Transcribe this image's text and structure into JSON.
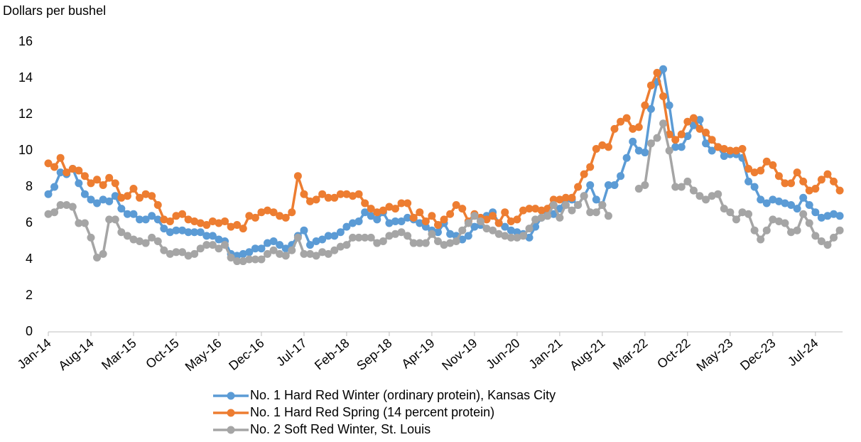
{
  "chart_data": {
    "type": "line",
    "y_axis_label": "Dollars per bushel",
    "categories": [
      "Jan-14",
      null,
      null,
      null,
      null,
      null,
      null,
      "Aug-14",
      null,
      null,
      null,
      null,
      null,
      null,
      "Mar-15",
      null,
      null,
      null,
      null,
      null,
      null,
      "Oct-15",
      null,
      null,
      null,
      null,
      null,
      null,
      "May-16",
      null,
      null,
      null,
      null,
      null,
      null,
      "Dec-16",
      null,
      null,
      null,
      null,
      null,
      null,
      "Jul-17",
      null,
      null,
      null,
      null,
      null,
      null,
      "Feb-18",
      null,
      null,
      null,
      null,
      null,
      null,
      "Sep-18",
      null,
      null,
      null,
      null,
      null,
      null,
      "Apr-19",
      null,
      null,
      null,
      null,
      null,
      null,
      "Nov-19",
      null,
      null,
      null,
      null,
      null,
      null,
      "Jun-20",
      null,
      null,
      null,
      null,
      null,
      null,
      "Jan-21",
      null,
      null,
      null,
      null,
      null,
      null,
      "Aug-21",
      null,
      null,
      null,
      null,
      null,
      null,
      "Mar-22",
      null,
      null,
      null,
      null,
      null,
      null,
      "Oct-22",
      null,
      null,
      null,
      null,
      null,
      null,
      "May-23",
      null,
      null,
      null,
      null,
      null,
      null,
      "Dec-23",
      null,
      null,
      null,
      null,
      null,
      null,
      "Jul-24",
      null,
      null,
      null,
      null
    ],
    "ylim": [
      0,
      16
    ],
    "yticks": [
      0,
      2,
      4,
      6,
      8,
      10,
      12,
      14,
      16
    ],
    "series": [
      {
        "name": "No. 1 Hard Red Winter (ordinary protein), Kansas City",
        "color": "#5b9bd5",
        "values": [
          7.6,
          8.0,
          8.8,
          8.7,
          9.0,
          8.2,
          7.6,
          7.3,
          7.1,
          7.3,
          7.2,
          7.5,
          6.8,
          6.5,
          6.5,
          6.2,
          6.2,
          6.4,
          6.2,
          5.7,
          5.5,
          5.6,
          5.6,
          5.5,
          5.5,
          5.5,
          5.3,
          5.3,
          5.1,
          5.0,
          4.3,
          4.2,
          4.3,
          4.4,
          4.6,
          4.6,
          4.9,
          5.0,
          4.8,
          4.6,
          4.8,
          5.3,
          5.6,
          4.8,
          5.0,
          5.1,
          5.3,
          5.3,
          5.5,
          5.8,
          6.0,
          6.1,
          6.6,
          6.4,
          6.2,
          6.6,
          6.0,
          6.1,
          6.1,
          6.3,
          6.2,
          6.0,
          5.8,
          5.6,
          5.5,
          6.0,
          5.4,
          5.3,
          5.1,
          5.3,
          5.8,
          5.9,
          6.4,
          6.6,
          6.0,
          5.8,
          5.6,
          5.5,
          5.4,
          5.2,
          5.8,
          6.3,
          6.5,
          6.5,
          6.8,
          7.3,
          7.3,
          7.0,
          7.5,
          8.1,
          7.3,
          7.0,
          8.1,
          8.1,
          8.6,
          9.6,
          10.5,
          10.0,
          9.9,
          12.3,
          13.8,
          14.5,
          12.5,
          10.2,
          10.2,
          10.8,
          11.4,
          11.7,
          10.4,
          10.0,
          10.2,
          9.7,
          9.8,
          9.8,
          9.6,
          8.3,
          8.0,
          7.3,
          7.1,
          7.3,
          7.2,
          7.1,
          7.0,
          6.8,
          7.4,
          7.0,
          6.6,
          6.3,
          6.4,
          6.5,
          6.4
        ]
      },
      {
        "name": "No. 1 Hard Red Spring (14 percent protein)",
        "color": "#ed7d31",
        "values": [
          9.3,
          9.1,
          9.6,
          8.8,
          9.0,
          8.9,
          8.6,
          8.2,
          8.4,
          8.1,
          8.5,
          8.2,
          7.4,
          7.5,
          7.9,
          7.4,
          7.6,
          7.5,
          7.0,
          6.2,
          6.1,
          6.4,
          6.5,
          6.2,
          6.1,
          6.0,
          5.9,
          6.1,
          6.0,
          6.1,
          5.8,
          5.9,
          5.7,
          6.4,
          6.3,
          6.6,
          6.7,
          6.6,
          6.4,
          6.3,
          6.6,
          8.6,
          7.6,
          7.2,
          7.3,
          7.6,
          7.4,
          7.4,
          7.6,
          7.6,
          7.5,
          7.6,
          7.1,
          6.8,
          6.6,
          6.7,
          6.9,
          6.8,
          7.1,
          7.1,
          6.3,
          6.6,
          6.1,
          6.4,
          5.9,
          6.2,
          6.5,
          7.0,
          6.8,
          6.1,
          6.5,
          6.3,
          6.2,
          6.4,
          6.0,
          6.6,
          6.1,
          6.2,
          6.7,
          6.8,
          6.8,
          6.7,
          6.8,
          7.3,
          7.3,
          7.4,
          7.4,
          8.0,
          8.7,
          9.1,
          10.1,
          10.3,
          10.2,
          11.2,
          11.6,
          11.8,
          11.2,
          11.3,
          12.5,
          13.6,
          14.3,
          13.0,
          10.9,
          10.6,
          10.9,
          11.6,
          11.8,
          11.2,
          11.0,
          10.6,
          10.2,
          10.1,
          10.0,
          10.0,
          10.1,
          9.0,
          8.8,
          8.9,
          9.4,
          9.2,
          8.6,
          8.2,
          8.2,
          8.8,
          8.3,
          7.8,
          7.9,
          8.4,
          8.7,
          8.3,
          7.8
        ]
      },
      {
        "name": "No. 2 Soft Red Winter, St. Louis",
        "color": "#a5a5a5",
        "values": [
          6.5,
          6.6,
          7.0,
          7.0,
          6.9,
          6.0,
          6.0,
          5.2,
          4.1,
          4.3,
          6.2,
          6.2,
          5.5,
          5.3,
          5.1,
          5.0,
          4.9,
          5.2,
          5.0,
          4.5,
          4.3,
          4.4,
          4.4,
          4.2,
          4.3,
          4.6,
          4.8,
          4.8,
          4.6,
          4.8,
          4.1,
          3.9,
          3.9,
          4.0,
          4.0,
          4.0,
          4.3,
          4.5,
          4.3,
          4.2,
          4.5,
          5.2,
          4.3,
          4.3,
          4.2,
          4.4,
          4.3,
          4.5,
          4.7,
          4.8,
          5.2,
          5.2,
          5.2,
          5.2,
          4.9,
          5.0,
          5.3,
          5.4,
          5.5,
          5.3,
          4.9,
          4.9,
          4.9,
          5.4,
          5.0,
          4.8,
          4.9,
          5.0,
          5.6,
          6.0,
          6.4,
          6.1,
          5.7,
          5.6,
          5.4,
          5.3,
          5.2,
          5.2,
          5.3,
          5.7,
          6.2,
          6.3,
          6.4,
          7.0,
          6.3,
          7.0,
          6.7,
          7.0,
          7.5,
          6.6,
          6.6,
          7.0,
          6.4,
          null,
          null,
          null,
          null,
          7.9,
          8.1,
          10.4,
          10.7,
          11.5,
          10.0,
          8.0,
          8.0,
          8.3,
          7.8,
          7.5,
          7.3,
          7.5,
          7.6,
          6.8,
          6.6,
          6.2,
          6.6,
          6.5,
          5.6,
          5.1,
          5.6,
          6.2,
          6.1,
          6.0,
          5.5,
          5.6,
          6.5,
          6.0,
          5.3,
          5.0,
          4.8,
          5.2,
          5.6
        ]
      }
    ],
    "legend": "bottom"
  }
}
